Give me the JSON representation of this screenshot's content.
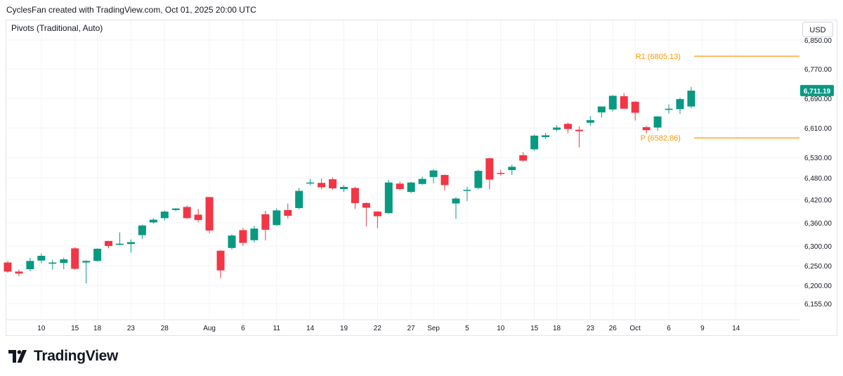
{
  "caption": "CyclesFan created with TradingView.com, Oct 01, 2025 20:00 UTC",
  "indicator": "Pivots (Traditional, Auto)",
  "currency": "USD",
  "brand": "TradingView",
  "colors": {
    "up": "#089981",
    "down": "#f23645",
    "pivot": "#ff9800",
    "price_tag": "#089981",
    "grid": "#f0f3fa"
  },
  "chart_data": {
    "type": "candlestick",
    "y_ticks": [
      "6,850.00",
      "6,770.00",
      "6,690.00",
      "6,610.00",
      "6,530.00",
      "6,480.00",
      "6,420.00",
      "6,360.00",
      "6,300.00",
      "6,250.00",
      "6,200.00",
      "6,155.00"
    ],
    "y_tick_values": [
      6850,
      6770,
      6690,
      6610,
      6530,
      6480,
      6420,
      6360,
      6300,
      6250,
      6200,
      6155
    ],
    "x_ticks": [
      "10",
      "15",
      "18",
      "23",
      "28",
      "Aug",
      "6",
      "11",
      "14",
      "19",
      "22",
      "27",
      "Sep",
      "5",
      "10",
      "15",
      "18",
      "23",
      "26",
      "Oct",
      "6",
      "9",
      "14"
    ],
    "last_price": 6711.19,
    "last_price_label": "6,711.19",
    "pivots": [
      {
        "label": "R1 (6805.13)",
        "value": 6805.13
      },
      {
        "label": "P (6582.86)",
        "value": 6582.86
      }
    ],
    "candles": [
      {
        "o": 6258,
        "h": 6262,
        "l": 6232,
        "c": 6235
      },
      {
        "o": 6235,
        "h": 6240,
        "l": 6223,
        "c": 6230
      },
      {
        "o": 6241,
        "h": 6270,
        "l": 6236,
        "c": 6262
      },
      {
        "o": 6263,
        "h": 6281,
        "l": 6256,
        "c": 6275
      },
      {
        "o": 6255,
        "h": 6265,
        "l": 6240,
        "c": 6258
      },
      {
        "o": 6257,
        "h": 6270,
        "l": 6241,
        "c": 6266
      },
      {
        "o": 6294,
        "h": 6297,
        "l": 6240,
        "c": 6242
      },
      {
        "o": 6258,
        "h": 6264,
        "l": 6205,
        "c": 6262
      },
      {
        "o": 6262,
        "h": 6294,
        "l": 6260,
        "c": 6293
      },
      {
        "o": 6313,
        "h": 6313,
        "l": 6294,
        "c": 6300
      },
      {
        "o": 6303,
        "h": 6335,
        "l": 6302,
        "c": 6306
      },
      {
        "o": 6305,
        "h": 6317,
        "l": 6283,
        "c": 6310
      },
      {
        "o": 6328,
        "h": 6355,
        "l": 6318,
        "c": 6353
      },
      {
        "o": 6361,
        "h": 6372,
        "l": 6358,
        "c": 6368
      },
      {
        "o": 6372,
        "h": 6392,
        "l": 6366,
        "c": 6389
      },
      {
        "o": 6393,
        "h": 6398,
        "l": 6390,
        "c": 6397
      },
      {
        "o": 6401,
        "h": 6405,
        "l": 6370,
        "c": 6372
      },
      {
        "o": 6381,
        "h": 6396,
        "l": 6361,
        "c": 6367
      },
      {
        "o": 6427,
        "h": 6427,
        "l": 6333,
        "c": 6340
      },
      {
        "o": 6288,
        "h": 6289,
        "l": 6218,
        "c": 6238
      },
      {
        "o": 6295,
        "h": 6330,
        "l": 6291,
        "c": 6327
      },
      {
        "o": 6341,
        "h": 6347,
        "l": 6300,
        "c": 6308
      },
      {
        "o": 6315,
        "h": 6352,
        "l": 6309,
        "c": 6345
      },
      {
        "o": 6382,
        "h": 6391,
        "l": 6314,
        "c": 6342
      },
      {
        "o": 6354,
        "h": 6397,
        "l": 6352,
        "c": 6392
      },
      {
        "o": 6393,
        "h": 6410,
        "l": 6371,
        "c": 6378
      },
      {
        "o": 6398,
        "h": 6452,
        "l": 6395,
        "c": 6444
      },
      {
        "o": 6466,
        "h": 6477,
        "l": 6460,
        "c": 6467
      },
      {
        "o": 6466,
        "h": 6478,
        "l": 6448,
        "c": 6454
      },
      {
        "o": 6476,
        "h": 6481,
        "l": 6447,
        "c": 6451
      },
      {
        "o": 6449,
        "h": 6460,
        "l": 6441,
        "c": 6455
      },
      {
        "o": 6452,
        "h": 6455,
        "l": 6396,
        "c": 6411
      },
      {
        "o": 6411,
        "h": 6413,
        "l": 6351,
        "c": 6399
      },
      {
        "o": 6389,
        "h": 6390,
        "l": 6346,
        "c": 6377
      },
      {
        "o": 6385,
        "h": 6474,
        "l": 6383,
        "c": 6467
      },
      {
        "o": 6464,
        "h": 6470,
        "l": 6446,
        "c": 6449
      },
      {
        "o": 6441,
        "h": 6469,
        "l": 6438,
        "c": 6467
      },
      {
        "o": 6463,
        "h": 6483,
        "l": 6461,
        "c": 6477
      },
      {
        "o": 6482,
        "h": 6501,
        "l": 6465,
        "c": 6498
      },
      {
        "o": 6487,
        "h": 6488,
        "l": 6445,
        "c": 6460
      },
      {
        "o": 6410,
        "h": 6427,
        "l": 6370,
        "c": 6423
      },
      {
        "o": 6445,
        "h": 6455,
        "l": 6416,
        "c": 6447
      },
      {
        "o": 6452,
        "h": 6500,
        "l": 6448,
        "c": 6497
      },
      {
        "o": 6528,
        "h": 6528,
        "l": 6448,
        "c": 6475
      },
      {
        "o": 6492,
        "h": 6500,
        "l": 6486,
        "c": 6490
      },
      {
        "o": 6499,
        "h": 6512,
        "l": 6487,
        "c": 6507
      },
      {
        "o": 6536,
        "h": 6545,
        "l": 6520,
        "c": 6522
      },
      {
        "o": 6552,
        "h": 6592,
        "l": 6548,
        "c": 6589
      },
      {
        "o": 6585,
        "h": 6596,
        "l": 6580,
        "c": 6590
      },
      {
        "o": 6605,
        "h": 6617,
        "l": 6601,
        "c": 6611
      },
      {
        "o": 6621,
        "h": 6624,
        "l": 6596,
        "c": 6607
      },
      {
        "o": 6605,
        "h": 6614,
        "l": 6557,
        "c": 6601
      },
      {
        "o": 6624,
        "h": 6642,
        "l": 6616,
        "c": 6631
      },
      {
        "o": 6652,
        "h": 6668,
        "l": 6638,
        "c": 6668
      },
      {
        "o": 6660,
        "h": 6699,
        "l": 6655,
        "c": 6697
      },
      {
        "o": 6696,
        "h": 6704,
        "l": 6667,
        "c": 6662
      },
      {
        "o": 6681,
        "h": 6683,
        "l": 6630,
        "c": 6651
      },
      {
        "o": 6612,
        "h": 6615,
        "l": 6595,
        "c": 6604
      },
      {
        "o": 6611,
        "h": 6642,
        "l": 6602,
        "c": 6641
      },
      {
        "o": 6659,
        "h": 6674,
        "l": 6649,
        "c": 6662
      },
      {
        "o": 6661,
        "h": 6692,
        "l": 6648,
        "c": 6688
      },
      {
        "o": 6668,
        "h": 6721,
        "l": 6664,
        "c": 6711
      }
    ]
  }
}
